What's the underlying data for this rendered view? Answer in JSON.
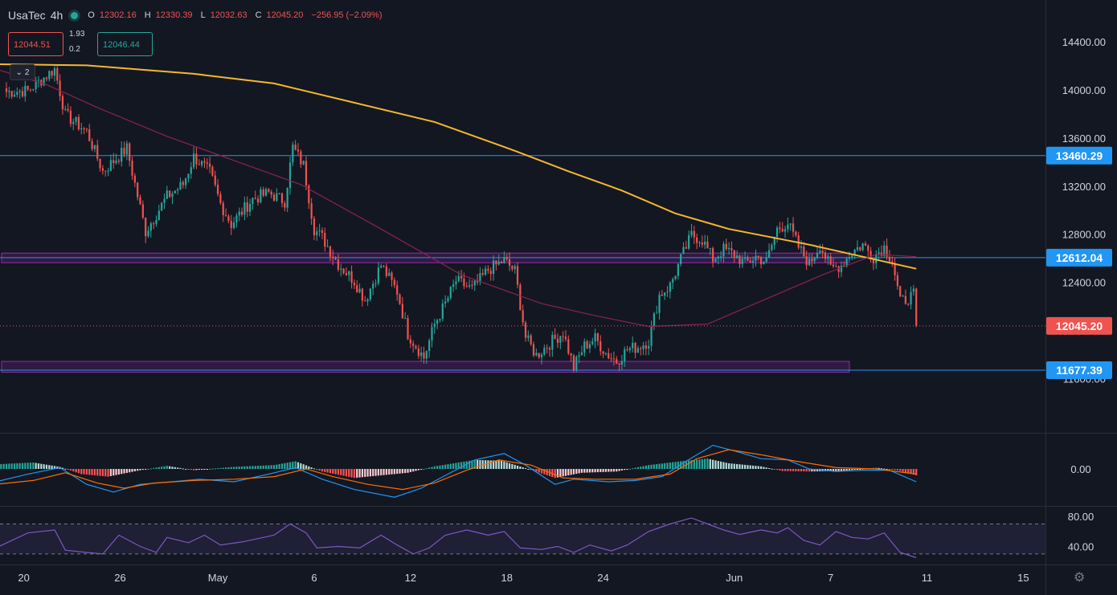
{
  "legend": {
    "symbol": "UsaTec",
    "interval": "4h",
    "open_label": "O",
    "open": "12302.16",
    "high_label": "H",
    "high": "12330.39",
    "low_label": "L",
    "low": "12032.63",
    "close_label": "C",
    "close": "12045.20",
    "change": "−256.95 (−2.09%)"
  },
  "trade": {
    "sell_price": "12044.51",
    "buy_price": "12046.44",
    "spread_top": "1.93",
    "spread_bottom": "0.2"
  },
  "indicators_collapse": {
    "count": "2"
  },
  "colors": {
    "background": "#131722",
    "up": "#26a69a",
    "down": "#ef5350",
    "ma_slow": "#f5b82e",
    "ma_fast": "#8b2252",
    "hline": "#2196f3",
    "zone": "#9c27b0",
    "macd_line": "#2196f3",
    "signal_line": "#ff6d00",
    "rsi_line": "#7e57c2"
  },
  "chart_data": [
    {
      "type": "candlestick",
      "title": "",
      "y_ticks": [
        "14400.00",
        "14000.00",
        "13600.00",
        "13200.00",
        "12800.00",
        "12400.00",
        "12000.00",
        "11600.00"
      ],
      "y_tick_values": [
        14400,
        14000,
        13600,
        13200,
        12800,
        12400,
        12000,
        11600
      ],
      "ylim": [
        11230,
        14660
      ],
      "x_ticks": [
        "20",
        "26",
        "May",
        "6",
        "12",
        "18",
        "24",
        "Jun",
        "7",
        "11",
        "15"
      ],
      "x_tick_index": [
        6.5,
        42.5,
        79,
        115,
        151,
        187,
        223,
        272,
        308,
        344,
        380
      ],
      "xlim": [
        -5.5,
        384
      ],
      "horizontal_lines": [
        {
          "label": "13460.29",
          "value": 13460.29
        },
        {
          "label": "12612.04",
          "value": 12612.04
        },
        {
          "label": "11677.39",
          "value": 11677.39
        }
      ],
      "last_price": {
        "label": "12045.20",
        "value": 12045.2
      },
      "zones": [
        {
          "from": 12570,
          "to": 12650,
          "end_index": 315
        },
        {
          "from": 11660,
          "to": 11750,
          "end_index": 315
        }
      ],
      "anchors": [
        [
          0,
          13990,
          12
        ],
        [
          8,
          14000,
          12
        ],
        [
          18,
          14180,
          10
        ],
        [
          22,
          13800,
          10
        ],
        [
          30,
          13660,
          9
        ],
        [
          36,
          13330,
          12
        ],
        [
          45,
          13520,
          10
        ],
        [
          52,
          12830,
          14
        ],
        [
          60,
          13120,
          10
        ],
        [
          66,
          13220,
          10
        ],
        [
          70,
          13450,
          10
        ],
        [
          76,
          13320,
          10
        ],
        [
          80,
          13060,
          10
        ],
        [
          84,
          12890,
          12
        ],
        [
          92,
          13100,
          10
        ],
        [
          98,
          13150,
          10
        ],
        [
          104,
          13080,
          10
        ],
        [
          107,
          13530,
          10
        ],
        [
          111,
          13380,
          10
        ],
        [
          115,
          12850,
          10
        ],
        [
          118,
          12780,
          10
        ],
        [
          124,
          12560,
          10
        ],
        [
          130,
          12420,
          10
        ],
        [
          134,
          12260,
          10
        ],
        [
          140,
          12550,
          10
        ],
        [
          146,
          12330,
          10
        ],
        [
          150,
          11980,
          10
        ],
        [
          156,
          11780,
          10
        ],
        [
          160,
          12060,
          10
        ],
        [
          164,
          12230,
          10
        ],
        [
          168,
          12420,
          10
        ],
        [
          174,
          12350,
          10
        ],
        [
          180,
          12510,
          10
        ],
        [
          186,
          12590,
          10
        ],
        [
          190,
          12500,
          10
        ],
        [
          194,
          11950,
          10
        ],
        [
          198,
          11800,
          10
        ],
        [
          204,
          11920,
          10
        ],
        [
          208,
          11990,
          10
        ],
        [
          212,
          11700,
          10
        ],
        [
          216,
          11880,
          10
        ],
        [
          220,
          11940,
          10
        ],
        [
          224,
          11820,
          10
        ],
        [
          228,
          11750,
          10
        ],
        [
          232,
          11850,
          10
        ],
        [
          236,
          11870,
          10
        ],
        [
          240,
          11920,
          10
        ],
        [
          244,
          12300,
          10
        ],
        [
          248,
          12380,
          10
        ],
        [
          252,
          12600,
          10
        ],
        [
          256,
          12800,
          10
        ],
        [
          260,
          12760,
          10
        ],
        [
          264,
          12600,
          10
        ],
        [
          268,
          12680,
          10
        ],
        [
          272,
          12640,
          10
        ],
        [
          276,
          12560,
          10
        ],
        [
          280,
          12620,
          10
        ],
        [
          284,
          12580,
          10
        ],
        [
          288,
          12850,
          10
        ],
        [
          292,
          12900,
          10
        ],
        [
          296,
          12700,
          10
        ],
        [
          300,
          12560,
          10
        ],
        [
          304,
          12720,
          10
        ],
        [
          308,
          12520,
          10
        ],
        [
          312,
          12550,
          10
        ],
        [
          316,
          12660,
          10
        ],
        [
          320,
          12720,
          10
        ],
        [
          324,
          12620,
          10
        ],
        [
          328,
          12700,
          10
        ],
        [
          331,
          12590,
          10
        ],
        [
          334,
          12240,
          10
        ],
        [
          338,
          12290,
          10
        ],
        [
          339,
          12300,
          8
        ],
        [
          340,
          12045,
          4
        ]
      ],
      "series": [
        {
          "name": "",
          "type": "line",
          "points": [
            [
              -4,
              14220
            ],
            [
              30,
              14210
            ],
            [
              70,
              14140
            ],
            [
              100,
              14060
            ],
            [
              130,
              13900
            ],
            [
              160,
              13740
            ],
            [
              190,
              13500
            ],
            [
              210,
              13330
            ],
            [
              230,
              13170
            ],
            [
              250,
              12980
            ],
            [
              270,
              12850
            ],
            [
              300,
              12720
            ],
            [
              320,
              12620
            ],
            [
              340,
              12520
            ]
          ]
        },
        {
          "name": "",
          "type": "line",
          "points": [
            [
              -4,
              14180
            ],
            [
              15,
              14050
            ],
            [
              35,
              13850
            ],
            [
              60,
              13620
            ],
            [
              90,
              13380
            ],
            [
              110,
              13220
            ],
            [
              140,
              12850
            ],
            [
              170,
              12470
            ],
            [
              200,
              12230
            ],
            [
              220,
              12130
            ],
            [
              240,
              12040
            ],
            [
              262,
              12060
            ],
            [
              285,
              12280
            ],
            [
              305,
              12470
            ],
            [
              325,
              12640
            ],
            [
              340,
              12620
            ]
          ]
        }
      ]
    },
    {
      "type": "histogram",
      "title": "",
      "y_ticks": [
        "0.00"
      ],
      "y_tick_values": [
        0
      ],
      "ylim": [
        -1.3,
        1.45
      ],
      "x_index_range": [
        -4,
        340
      ],
      "histogram_anchors": [
        [
          -4,
          0.18
        ],
        [
          10,
          0.25
        ],
        [
          20,
          0.08
        ],
        [
          28,
          -0.2
        ],
        [
          38,
          -0.3
        ],
        [
          50,
          -0.05
        ],
        [
          60,
          0.12
        ],
        [
          70,
          -0.05
        ],
        [
          85,
          0.08
        ],
        [
          100,
          0.15
        ],
        [
          108,
          0.3
        ],
        [
          118,
          -0.1
        ],
        [
          130,
          -0.35
        ],
        [
          150,
          -0.15
        ],
        [
          160,
          0.1
        ],
        [
          175,
          0.35
        ],
        [
          185,
          0.32
        ],
        [
          195,
          0.0
        ],
        [
          205,
          -0.35
        ],
        [
          215,
          -0.15
        ],
        [
          228,
          -0.1
        ],
        [
          240,
          0.15
        ],
        [
          252,
          0.3
        ],
        [
          262,
          0.4
        ],
        [
          270,
          0.22
        ],
        [
          282,
          0.1
        ],
        [
          290,
          -0.08
        ],
        [
          300,
          -0.1
        ],
        [
          312,
          -0.08
        ],
        [
          325,
          0.05
        ],
        [
          333,
          -0.05
        ],
        [
          340,
          -0.25
        ]
      ],
      "series": [
        {
          "name": "",
          "type": "line",
          "points": [
            [
              -4,
              -0.5
            ],
            [
              8,
              -0.2
            ],
            [
              20,
              0.05
            ],
            [
              30,
              -0.6
            ],
            [
              40,
              -0.9
            ],
            [
              50,
              -0.6
            ],
            [
              62,
              -0.5
            ],
            [
              72,
              -0.4
            ],
            [
              85,
              -0.5
            ],
            [
              98,
              -0.2
            ],
            [
              108,
              0.05
            ],
            [
              118,
              -0.4
            ],
            [
              130,
              -0.8
            ],
            [
              145,
              -1.1
            ],
            [
              155,
              -0.75
            ],
            [
              165,
              -0.2
            ],
            [
              175,
              0.35
            ],
            [
              186,
              0.6
            ],
            [
              194,
              0.15
            ],
            [
              205,
              -0.6
            ],
            [
              212,
              -0.4
            ],
            [
              225,
              -0.5
            ],
            [
              235,
              -0.45
            ],
            [
              245,
              -0.3
            ],
            [
              254,
              0.3
            ],
            [
              264,
              0.92
            ],
            [
              272,
              0.7
            ],
            [
              282,
              0.4
            ],
            [
              292,
              0.35
            ],
            [
              300,
              0.0
            ],
            [
              310,
              -0.1
            ],
            [
              320,
              -0.05
            ],
            [
              330,
              -0.05
            ],
            [
              340,
              -0.5
            ]
          ]
        },
        {
          "name": "",
          "type": "line",
          "points": [
            [
              -4,
              -0.6
            ],
            [
              10,
              -0.45
            ],
            [
              22,
              -0.15
            ],
            [
              34,
              -0.55
            ],
            [
              44,
              -0.75
            ],
            [
              55,
              -0.55
            ],
            [
              70,
              -0.45
            ],
            [
              85,
              -0.4
            ],
            [
              100,
              -0.3
            ],
            [
              112,
              0.0
            ],
            [
              122,
              -0.3
            ],
            [
              135,
              -0.6
            ],
            [
              148,
              -0.8
            ],
            [
              160,
              -0.55
            ],
            [
              172,
              -0.05
            ],
            [
              184,
              0.35
            ],
            [
              196,
              0.15
            ],
            [
              208,
              -0.35
            ],
            [
              220,
              -0.4
            ],
            [
              235,
              -0.4
            ],
            [
              248,
              -0.2
            ],
            [
              258,
              0.4
            ],
            [
              270,
              0.75
            ],
            [
              282,
              0.55
            ],
            [
              295,
              0.3
            ],
            [
              310,
              0.05
            ],
            [
              325,
              0.0
            ],
            [
              340,
              -0.2
            ]
          ]
        }
      ]
    },
    {
      "type": "line",
      "title": "",
      "y_ticks": [
        "80.00",
        "40.00"
      ],
      "y_tick_values": [
        80,
        40
      ],
      "ylim": [
        17,
        92
      ],
      "band": [
        30,
        70
      ],
      "series": [
        {
          "name": "",
          "type": "line",
          "points": [
            [
              -4,
              38
            ],
            [
              8,
              58
            ],
            [
              18,
              62
            ],
            [
              22,
              35
            ],
            [
              30,
              32
            ],
            [
              36,
              30
            ],
            [
              42,
              55
            ],
            [
              50,
              40
            ],
            [
              56,
              32
            ],
            [
              60,
              52
            ],
            [
              68,
              45
            ],
            [
              74,
              55
            ],
            [
              80,
              42
            ],
            [
              88,
              46
            ],
            [
              96,
              52
            ],
            [
              100,
              55
            ],
            [
              106,
              70
            ],
            [
              112,
              58
            ],
            [
              116,
              38
            ],
            [
              124,
              40
            ],
            [
              132,
              38
            ],
            [
              140,
              55
            ],
            [
              146,
              42
            ],
            [
              152,
              30
            ],
            [
              158,
              38
            ],
            [
              164,
              55
            ],
            [
              172,
              62
            ],
            [
              180,
              55
            ],
            [
              186,
              60
            ],
            [
              192,
              38
            ],
            [
              200,
              36
            ],
            [
              206,
              40
            ],
            [
              212,
              32
            ],
            [
              218,
              42
            ],
            [
              226,
              34
            ],
            [
              232,
              42
            ],
            [
              240,
              60
            ],
            [
              248,
              70
            ],
            [
              256,
              78
            ],
            [
              262,
              70
            ],
            [
              268,
              62
            ],
            [
              274,
              56
            ],
            [
              282,
              62
            ],
            [
              288,
              58
            ],
            [
              292,
              65
            ],
            [
              298,
              48
            ],
            [
              304,
              42
            ],
            [
              310,
              60
            ],
            [
              316,
              52
            ],
            [
              322,
              50
            ],
            [
              328,
              58
            ],
            [
              334,
              32
            ],
            [
              340,
              25
            ]
          ]
        }
      ]
    }
  ]
}
